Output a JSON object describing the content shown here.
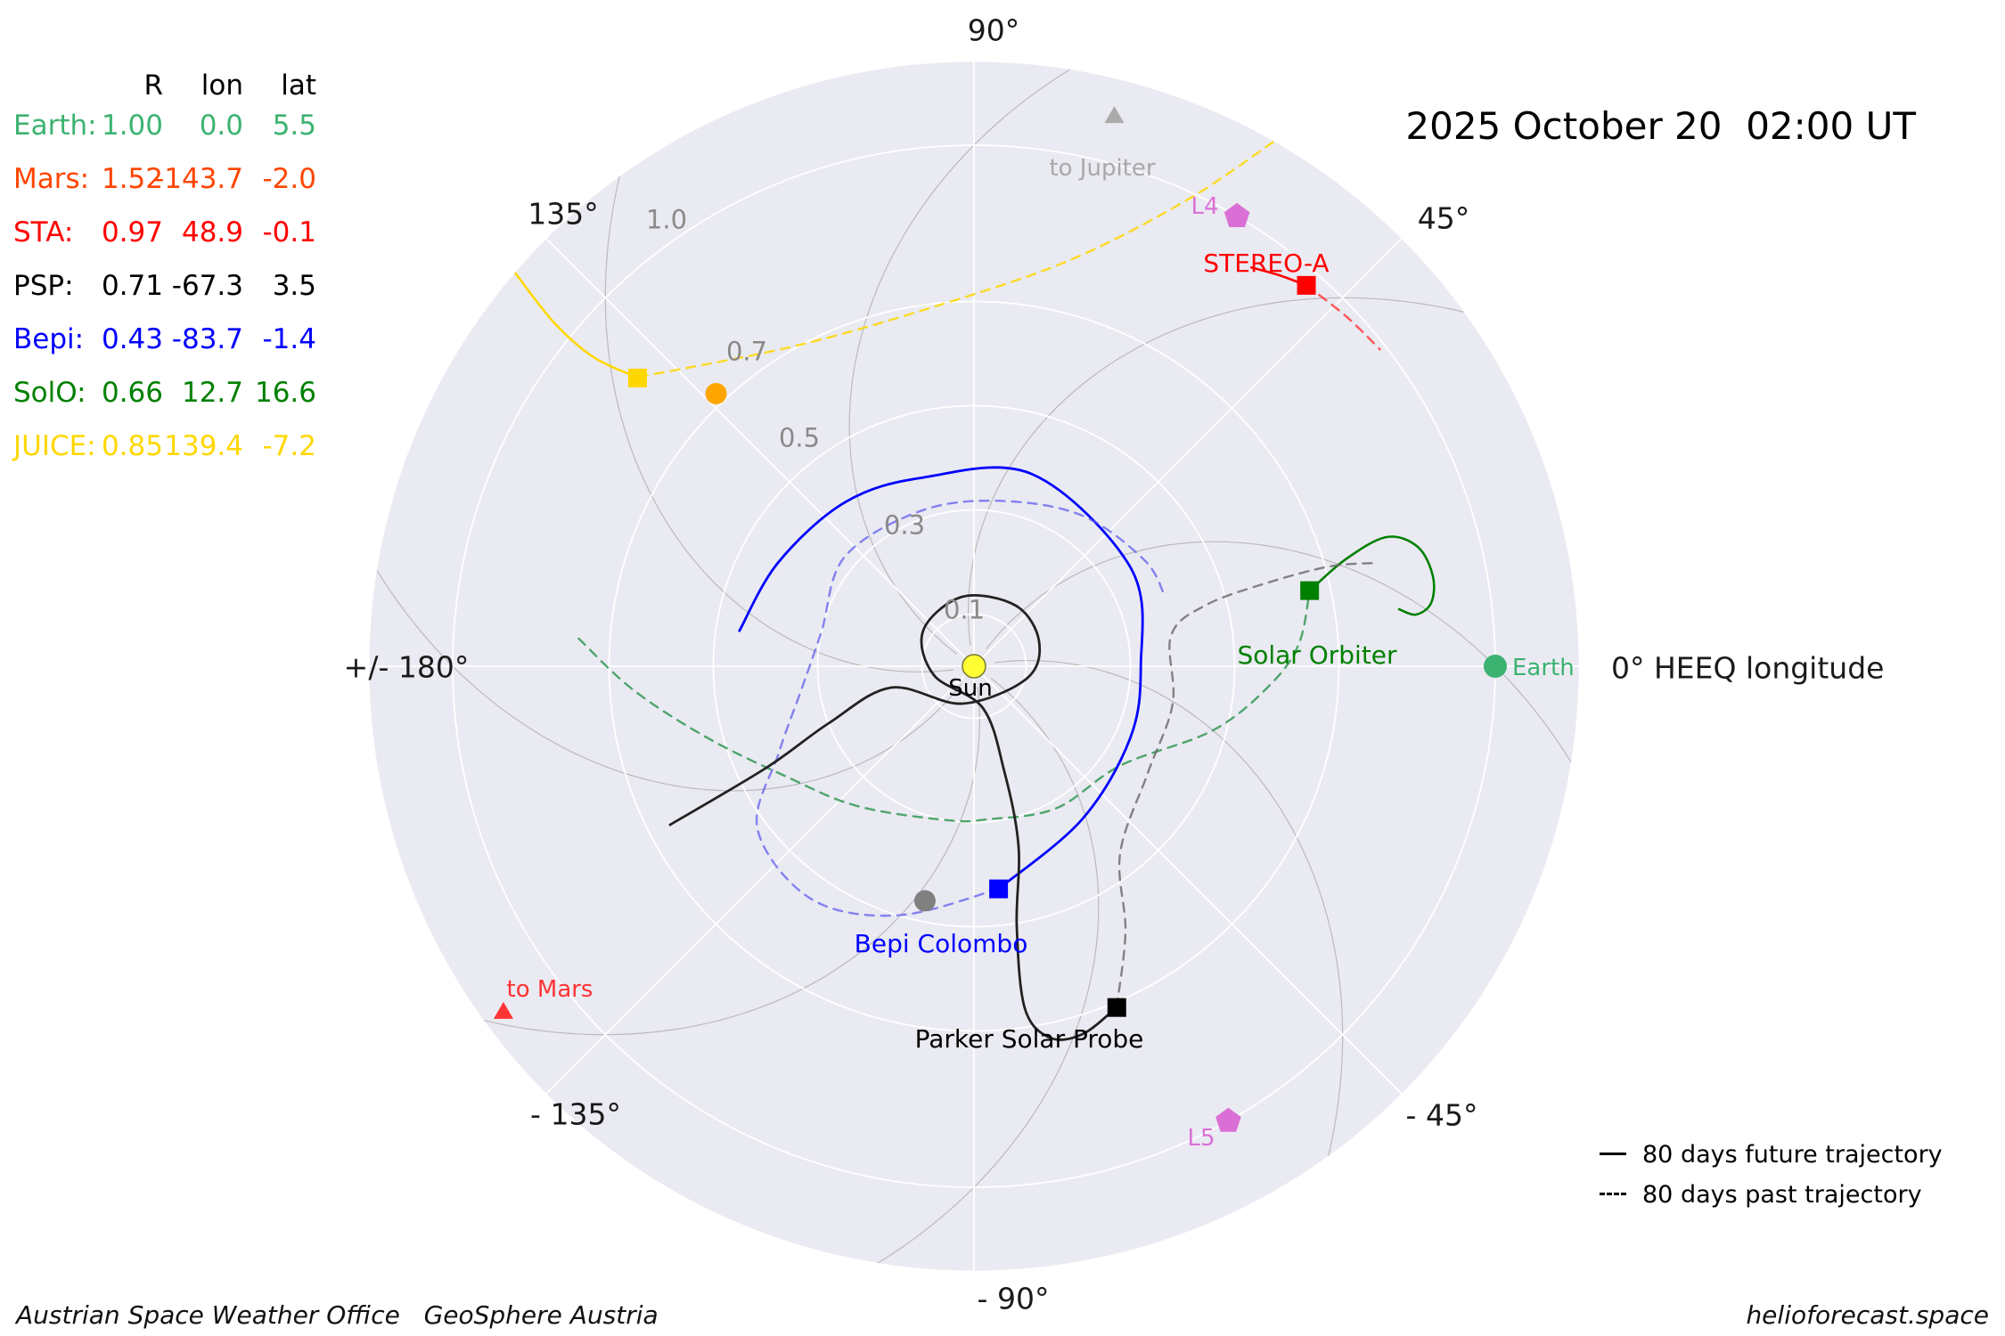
{
  "header": {
    "datetime": "2025 October 20  02:00 UT"
  },
  "table": {
    "columns": [
      "R",
      "lon",
      "lat"
    ],
    "rows": [
      {
        "label": "Earth:",
        "r": "1.00",
        "lon": "0.0",
        "lat": "5.5",
        "color": "#3cb371"
      },
      {
        "label": "Mars:",
        "r": "1.52",
        "lon": "-143.7",
        "lat": "-2.0",
        "color": "#ff4500"
      },
      {
        "label": "STA:",
        "r": "0.97",
        "lon": "48.9",
        "lat": "-0.1",
        "color": "#ff0000"
      },
      {
        "label": "PSP:",
        "r": "0.71",
        "lon": "-67.3",
        "lat": "3.5",
        "color": "#000000"
      },
      {
        "label": "Bepi:",
        "r": "0.43",
        "lon": "-83.7",
        "lat": "-1.4",
        "color": "#0000ff"
      },
      {
        "label": "SolO:",
        "r": "0.66",
        "lon": "12.7",
        "lat": "16.6",
        "color": "#008000"
      },
      {
        "label": "JUICE:",
        "r": "0.85",
        "lon": "139.4",
        "lat": "-7.2",
        "color": "#ffd700"
      }
    ]
  },
  "axis": {
    "angle_labels": {
      "deg90": "90°",
      "deg45": "45°",
      "deg135": "135°",
      "deg180": "+/- 180°",
      "degm135": "- 135°",
      "degm90": "- 90°",
      "degm45": "- 45°",
      "deg0": "0° HEEQ longitude"
    },
    "radial_labels": {
      "r01": "0.1",
      "r03": "0.3",
      "r05": "0.5",
      "r07": "0.7",
      "r10": "1.0"
    }
  },
  "plot_labels": {
    "sun": "Sun",
    "stereo_a": "STEREO-A",
    "solar_orbiter": "Solar Orbiter",
    "earth": "Earth",
    "bepi": "Bepi Colombo",
    "psp": "Parker Solar Probe",
    "to_jupiter": "to Jupiter",
    "to_mars": "to Mars",
    "l4": "L4",
    "l5": "L5"
  },
  "legend": {
    "future": "80 days future trajectory",
    "past": "80 days past trajectory"
  },
  "footer": {
    "left": "Austrian Space Weather Office   GeoSphere Austria",
    "right": "helioforecast.space"
  },
  "chart_data": {
    "type": "scatter",
    "projection": "polar",
    "title": "2025 October 20  02:00 UT",
    "r_units": "AU",
    "radial_ticks": [
      0.1,
      0.3,
      0.5,
      0.7,
      1.0
    ],
    "r_max": 1.16,
    "angle_ticks_deg": [
      0,
      45,
      90,
      135,
      180,
      -135,
      -90,
      -45
    ],
    "angle_convention": "HEEQ longitude, 0 deg = Earth direction, counterclockwise positive",
    "background_color": "#eaeaf2",
    "spacecraft": [
      {
        "name": "Earth",
        "R": 1.0,
        "lon": 0.0,
        "lat": 5.5,
        "color": "#3cb371",
        "marker": "circle"
      },
      {
        "name": "Mars",
        "R": 1.52,
        "lon": -143.7,
        "lat": -2.0,
        "color": "#ff4500",
        "marker": "off-plot, edge arrow 'to Mars'"
      },
      {
        "name": "STEREO-A",
        "R": 0.97,
        "lon": 48.9,
        "lat": -0.1,
        "color": "#ff0000",
        "marker": "square"
      },
      {
        "name": "Parker Solar Probe",
        "R": 0.71,
        "lon": -67.3,
        "lat": 3.5,
        "color": "#000000",
        "marker": "square"
      },
      {
        "name": "BepiColombo",
        "R": 0.43,
        "lon": -83.7,
        "lat": -1.4,
        "color": "#0000ff",
        "marker": "square"
      },
      {
        "name": "Solar Orbiter",
        "R": 0.66,
        "lon": 12.7,
        "lat": 16.6,
        "color": "#008000",
        "marker": "square"
      },
      {
        "name": "JUICE",
        "R": 0.85,
        "lon": 139.4,
        "lat": -7.2,
        "color": "#ffd700",
        "marker": "square"
      }
    ],
    "planets_unlabeled": [
      {
        "name": "Venus (unlabeled dot)",
        "R": 0.72,
        "lon": 133.4,
        "color": "#ffa500"
      },
      {
        "name": "Mercury (unlabeled dot)",
        "R": 0.46,
        "lon": -101.8,
        "color": "#808080"
      }
    ],
    "markers_other": [
      {
        "name": "L4",
        "R": 1.0,
        "lon": 59.7,
        "color": "#da70d6",
        "marker": "pentagon"
      },
      {
        "name": "L5",
        "R": 1.0,
        "lon": -60.8,
        "color": "#da70d6",
        "marker": "pentagon"
      },
      {
        "name": "to Jupiter",
        "R": 1.09,
        "lon": 75.7,
        "color": "#ababab",
        "marker": "triangle"
      },
      {
        "name": "to Mars",
        "R": 1.12,
        "lon": -143.7,
        "color": "#ff3333",
        "marker": "triangle"
      }
    ],
    "sun": {
      "color": "#ffff33",
      "label": "Sun"
    },
    "trajectories": {
      "days_future": 80,
      "days_past": 80,
      "future_style": "solid",
      "past_style": "dashed"
    }
  }
}
